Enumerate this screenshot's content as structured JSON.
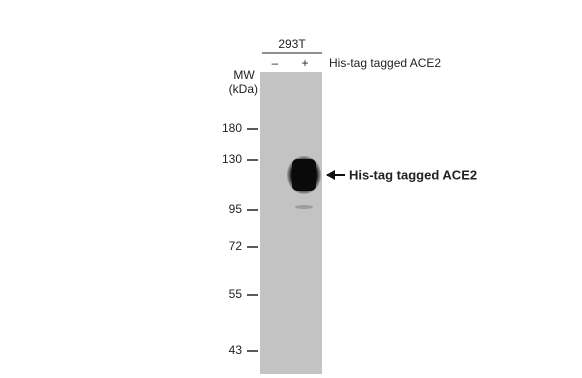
{
  "cell_line": "293T",
  "lanes": [
    "–",
    "+"
  ],
  "condition": "His-tag tagged ACE2",
  "mw_label": [
    "MW",
    "(kDa)"
  ],
  "markers": [
    "180",
    "130",
    "95",
    "72",
    "55",
    "43"
  ],
  "band_label": "His-tag  tagged ACE2"
}
